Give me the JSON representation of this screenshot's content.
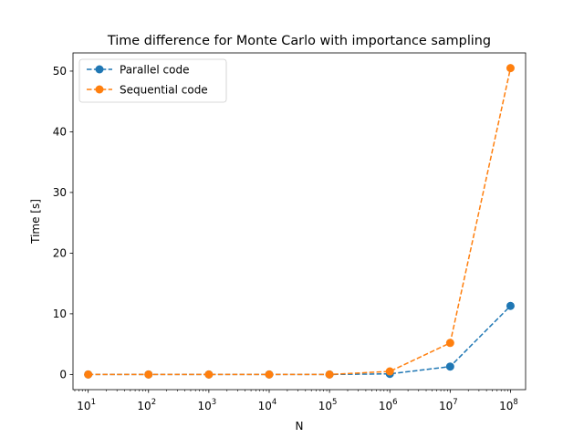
{
  "chart_data": {
    "type": "line",
    "title": "Time difference for Monte Carlo with importance sampling",
    "xlabel": "N",
    "ylabel": "Time [s]",
    "xscale": "log",
    "x": [
      10,
      100,
      1000,
      10000,
      100000,
      1000000,
      10000000,
      100000000
    ],
    "x_tick_labels": [
      {
        "base": "10",
        "exp": "1"
      },
      {
        "base": "10",
        "exp": "2"
      },
      {
        "base": "10",
        "exp": "3"
      },
      {
        "base": "10",
        "exp": "4"
      },
      {
        "base": "10",
        "exp": "5"
      },
      {
        "base": "10",
        "exp": "6"
      },
      {
        "base": "10",
        "exp": "7"
      },
      {
        "base": "10",
        "exp": "8"
      }
    ],
    "xlim": [
      5.6,
      178000000
    ],
    "ylim": [
      -2.5,
      53
    ],
    "y_ticks": [
      0,
      10,
      20,
      30,
      40,
      50
    ],
    "series": [
      {
        "name": "Parallel code",
        "color": "#1f77b4",
        "values": [
          0.0,
          0.0,
          0.0,
          0.0,
          0.0,
          0.1,
          1.3,
          11.3
        ]
      },
      {
        "name": "Sequential code",
        "color": "#ff7f0e",
        "values": [
          0.0,
          0.0,
          0.0,
          0.0,
          0.0,
          0.5,
          5.2,
          50.5
        ]
      }
    ],
    "line_style": "dashed",
    "marker": "circle",
    "legend_position": "top-left",
    "grid": false
  }
}
